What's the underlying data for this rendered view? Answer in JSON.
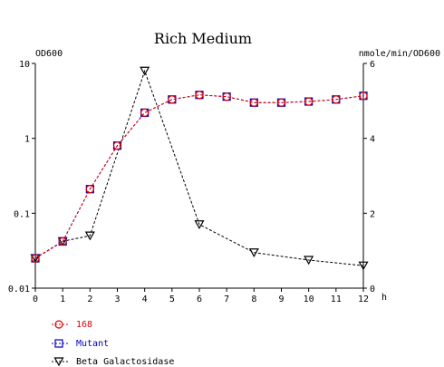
{
  "chart_data": {
    "type": "line",
    "title": "Rich Medium",
    "xlabel": "h",
    "ylabel_left": "OD600",
    "ylabel_right": "nmole/min/OD600",
    "x_ticks": [
      "0",
      "1",
      "2",
      "3",
      "4",
      "5",
      "6",
      "7",
      "8",
      "9",
      "10",
      "11",
      "12"
    ],
    "y_left_ticks": [
      "10",
      "1",
      "0.1",
      "0.01"
    ],
    "y_right_ticks": [
      "6",
      "4",
      "2",
      "0"
    ],
    "xlim": [
      0,
      12
    ],
    "y_left_scale": "log",
    "y_left_lim": [
      0.01,
      10
    ],
    "y_right_lim": [
      0,
      6
    ],
    "grid": false,
    "legend_position": "bottom-left",
    "series": [
      {
        "name": "168",
        "axis": "left",
        "color": "#e00000",
        "marker": "circle",
        "x": [
          0,
          1,
          2,
          3,
          4,
          5,
          6,
          7,
          8,
          9,
          10,
          11,
          12
        ],
        "y": [
          0.025,
          0.042,
          0.21,
          0.8,
          2.2,
          3.3,
          3.8,
          3.6,
          3.0,
          3.0,
          3.1,
          3.3,
          3.7
        ]
      },
      {
        "name": "Mutant",
        "axis": "left",
        "color": "#0000c0",
        "marker": "square",
        "x": [
          0,
          1,
          2,
          3,
          4,
          5,
          6,
          7,
          8,
          9,
          10,
          11,
          12
        ],
        "y": [
          0.025,
          0.042,
          0.21,
          0.8,
          2.2,
          3.3,
          3.8,
          3.6,
          3.0,
          3.0,
          3.1,
          3.3,
          3.7
        ]
      },
      {
        "name": "Beta Galactosidase",
        "axis": "right",
        "color": "#000000",
        "marker": "triangle-down",
        "x": [
          0,
          1,
          2,
          4,
          6,
          8,
          10,
          12
        ],
        "y": [
          0.8,
          1.25,
          1.4,
          5.8,
          1.7,
          0.95,
          0.75,
          0.6
        ]
      }
    ]
  }
}
